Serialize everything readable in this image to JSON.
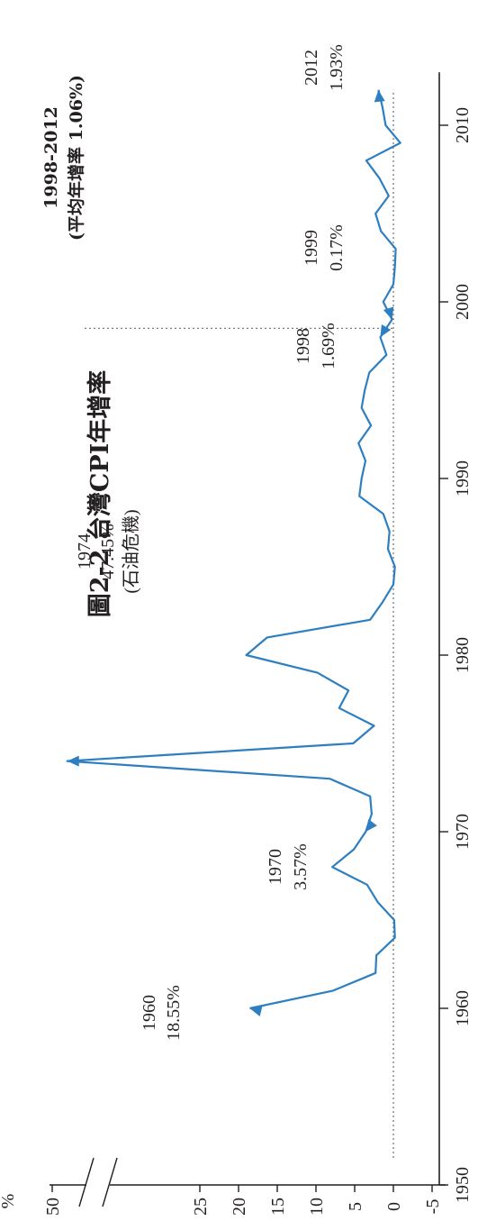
{
  "chart_data": {
    "type": "line",
    "title": "圖2-2 台灣CPI年增率",
    "xlabel": "",
    "ylabel": "%",
    "x_ticks": [
      1950,
      1960,
      1970,
      1980,
      1990,
      2000,
      2010
    ],
    "y_ticks": [
      -5,
      0,
      5,
      10,
      15,
      20,
      25,
      50
    ],
    "y_axis_break": true,
    "xlim": [
      1950,
      2013
    ],
    "colors": {
      "line": "#2d7fc1",
      "axis": "#231f20",
      "reference": "#7a7a7a"
    },
    "series": [
      {
        "x": [
          1960,
          1961,
          1962,
          1963,
          1964,
          1965,
          1966,
          1967,
          1968,
          1969,
          1970,
          1971,
          1972,
          1973,
          1974,
          1975,
          1976,
          1977,
          1978,
          1979,
          1980,
          1981,
          1982,
          1983,
          1984,
          1985,
          1986,
          1987,
          1988,
          1989,
          1990,
          1991,
          1992,
          1993,
          1994,
          1995,
          1996,
          1997,
          1998,
          1999,
          2000,
          2001,
          2002,
          2003,
          2004,
          2005,
          2006,
          2007,
          2008,
          2009,
          2010,
          2011,
          2012
        ],
        "y": [
          18.55,
          7.8,
          2.3,
          2.2,
          -0.2,
          -0.1,
          2.0,
          3.4,
          7.9,
          5.1,
          3.57,
          2.8,
          3.0,
          8.2,
          47.45,
          5.2,
          2.5,
          7.0,
          5.8,
          9.8,
          19.0,
          16.3,
          3.0,
          1.4,
          0.0,
          -0.2,
          0.7,
          0.5,
          1.3,
          4.4,
          4.1,
          3.6,
          4.5,
          2.9,
          4.1,
          3.7,
          3.1,
          0.9,
          1.69,
          0.17,
          1.3,
          0.0,
          -0.2,
          -0.3,
          1.6,
          2.3,
          0.6,
          1.8,
          3.5,
          -0.9,
          1.0,
          1.4,
          1.93
        ]
      }
    ],
    "reference_line_y": 0,
    "period_divider_x": 1998.5,
    "annotations": [
      {
        "year": "1960",
        "value": "18.55%"
      },
      {
        "year": "1970",
        "value": "3.57%"
      },
      {
        "year": "1974",
        "value": "47.45%",
        "note": "(石油危機)"
      },
      {
        "year": "1998",
        "value": "1.69%"
      },
      {
        "year": "1999",
        "value": "0.17%"
      },
      {
        "year": "2012",
        "value": "1.93%"
      }
    ],
    "period_label": {
      "range": "1998-2012",
      "desc": "(平均年增率 1.06%)"
    }
  }
}
